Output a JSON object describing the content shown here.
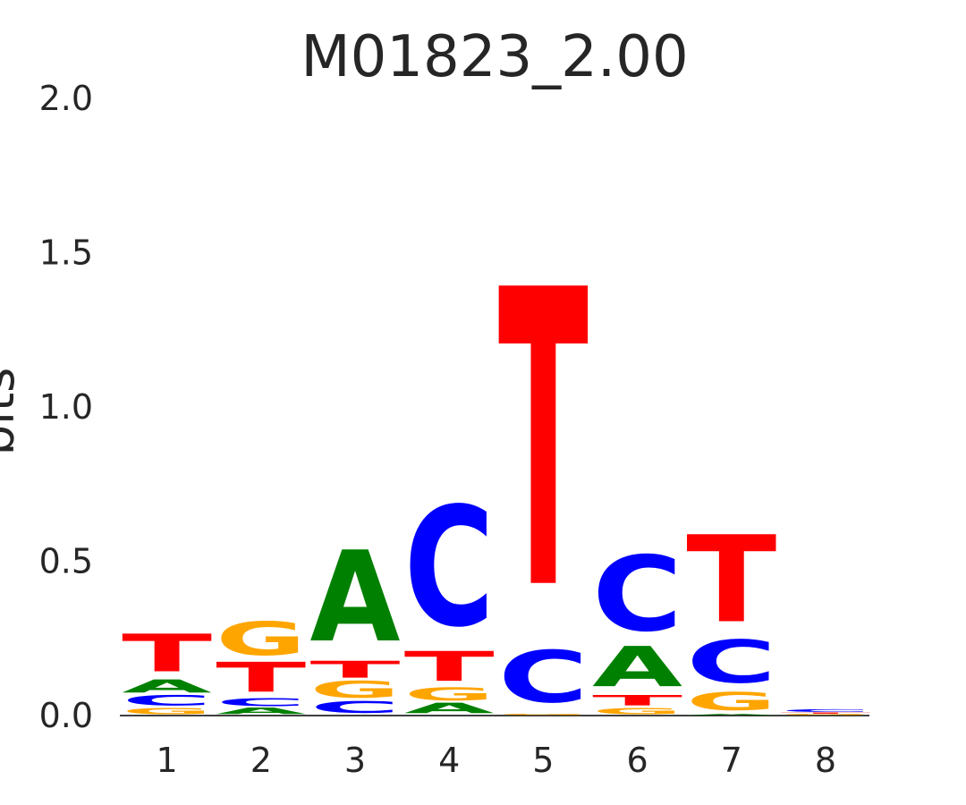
{
  "chart_data": {
    "type": "sequence-logo",
    "title": "M01823_2.00",
    "ylabel": "bits",
    "ylim": [
      0,
      2.0
    ],
    "yticks": [
      "0.0",
      "0.5",
      "1.0",
      "1.5",
      "2.0"
    ],
    "yticks_values": [
      0.0,
      0.5,
      1.0,
      1.5,
      2.0
    ],
    "positions": [
      "1",
      "2",
      "3",
      "4",
      "5",
      "6",
      "7",
      "8"
    ],
    "colors": {
      "A": "#008000",
      "C": "#0000ff",
      "G": "#ffa500",
      "T": "#ff0000"
    },
    "stacks": [
      [
        {
          "letter": "G",
          "height": 0.025
        },
        {
          "letter": "C",
          "height": 0.04
        },
        {
          "letter": "A",
          "height": 0.05
        },
        {
          "letter": "T",
          "height": 0.145
        }
      ],
      [
        {
          "letter": "A",
          "height": 0.025
        },
        {
          "letter": "C",
          "height": 0.03
        },
        {
          "letter": "T",
          "height": 0.115
        },
        {
          "letter": "G",
          "height": 0.13
        }
      ],
      [
        {
          "letter": "C",
          "height": 0.045
        },
        {
          "letter": "G",
          "height": 0.065
        },
        {
          "letter": "T",
          "height": 0.065
        },
        {
          "letter": "A",
          "height": 0.35
        }
      ],
      [
        {
          "letter": "A",
          "height": 0.04
        },
        {
          "letter": "G",
          "height": 0.05
        },
        {
          "letter": "T",
          "height": 0.115
        },
        {
          "letter": "C",
          "height": 0.46
        }
      ],
      [
        {
          "letter": "G",
          "height": 0.005
        },
        {
          "letter": "C",
          "height": 0.2
        },
        {
          "letter": "T",
          "height": 1.145
        }
      ],
      [
        {
          "letter": "G",
          "height": 0.025
        },
        {
          "letter": "T",
          "height": 0.04
        },
        {
          "letter": "A",
          "height": 0.155
        },
        {
          "letter": "C",
          "height": 0.29
        }
      ],
      [
        {
          "letter": "A",
          "height": 0.005
        },
        {
          "letter": "G",
          "height": 0.07
        },
        {
          "letter": "C",
          "height": 0.165
        },
        {
          "letter": "T",
          "height": 0.335
        }
      ],
      [
        {
          "letter": "G",
          "height": 0.005
        },
        {
          "letter": "T",
          "height": 0.005
        },
        {
          "letter": "C",
          "height": 0.01
        }
      ]
    ]
  }
}
